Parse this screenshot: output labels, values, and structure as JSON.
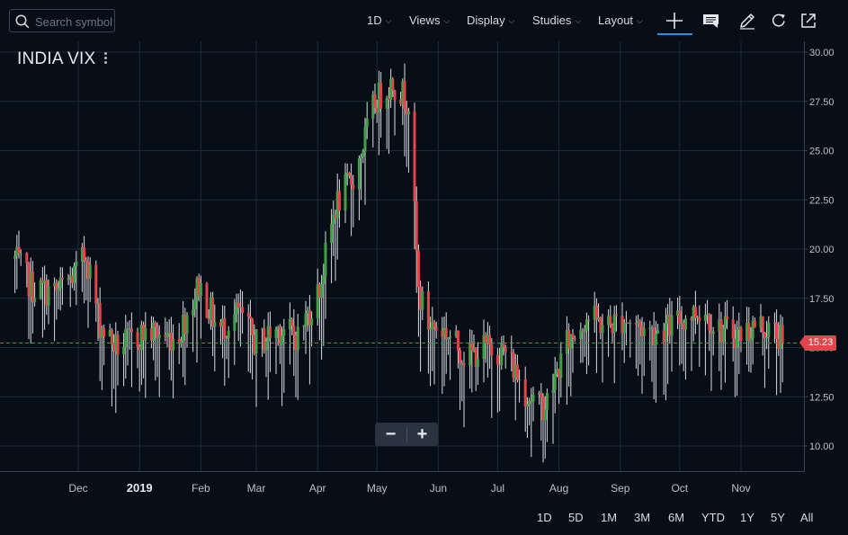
{
  "toolbar": {
    "search_placeholder": "Search symbol",
    "interval": "1D",
    "views": "Views",
    "display": "Display",
    "studies": "Studies",
    "layout": "Layout"
  },
  "symbol": "INDIA VIX",
  "last_price": "15.23",
  "zoom": {
    "minus": "−",
    "plus": "+"
  },
  "ranges": [
    "1D",
    "5D",
    "1M",
    "3M",
    "6M",
    "YTD",
    "1Y",
    "5Y",
    "All"
  ],
  "colors": {
    "background": "#070e17",
    "grid": "#1f2b36",
    "up": "#43a047",
    "down": "#e0464a",
    "wick": "#d9dde2",
    "accent": "#2f8fe8"
  },
  "chart_data": {
    "type": "candlestick",
    "title": "INDIA VIX",
    "interval": "1D",
    "ylim": [
      8.8,
      30.8
    ],
    "y_ticks": [
      "30.00",
      "27.50",
      "25.00",
      "22.50",
      "20.00",
      "17.50",
      "15.00",
      "12.50",
      "10.00"
    ],
    "x_ticks": [
      "Oct",
      "Dec",
      "2019",
      "Feb",
      "Mar",
      "Apr",
      "May",
      "Jun",
      "Jul",
      "Aug",
      "Sep",
      "Oct",
      "Nov"
    ],
    "x_range": [
      "2018-10-30",
      "2019-11-22"
    ],
    "last_value": 15.23,
    "ohlc_anchors": {
      "date": [
        "2018-10-30",
        "2018-11-08",
        "2018-11-20",
        "2018-11-30",
        "2018-12-05",
        "2018-12-12",
        "2018-12-20",
        "2019-01-05",
        "2019-01-20",
        "2019-01-31",
        "2019-02-10",
        "2019-02-20",
        "2019-03-01",
        "2019-03-12",
        "2019-03-22",
        "2019-04-02",
        "2019-04-10",
        "2019-04-20",
        "2019-04-30",
        "2019-05-09",
        "2019-05-17",
        "2019-05-22",
        "2019-05-27",
        "2019-06-05",
        "2019-06-15",
        "2019-06-25",
        "2019-07-05",
        "2019-07-15",
        "2019-07-22",
        "2019-07-26",
        "2019-08-05",
        "2019-08-15",
        "2019-08-25",
        "2019-09-03",
        "2019-09-15",
        "2019-09-25",
        "2019-10-03",
        "2019-10-13",
        "2019-10-20",
        "2019-10-31",
        "2019-11-10",
        "2019-11-20",
        "2019-11-22"
      ],
      "close": [
        19.5,
        18.0,
        17.8,
        18.8,
        19.8,
        16.2,
        15.0,
        15.8,
        15.5,
        18.2,
        15.8,
        16.8,
        15.2,
        16.0,
        15.6,
        18.0,
        22.2,
        23.8,
        27.5,
        28.5,
        27.5,
        17.8,
        16.2,
        15.8,
        14.5,
        15.0,
        14.8,
        12.8,
        12.0,
        12.2,
        15.2,
        16.6,
        16.1,
        16.5,
        15.8,
        16.0,
        16.5,
        17.0,
        16.0,
        15.7,
        16.2,
        15.6,
        15.23
      ]
    }
  }
}
